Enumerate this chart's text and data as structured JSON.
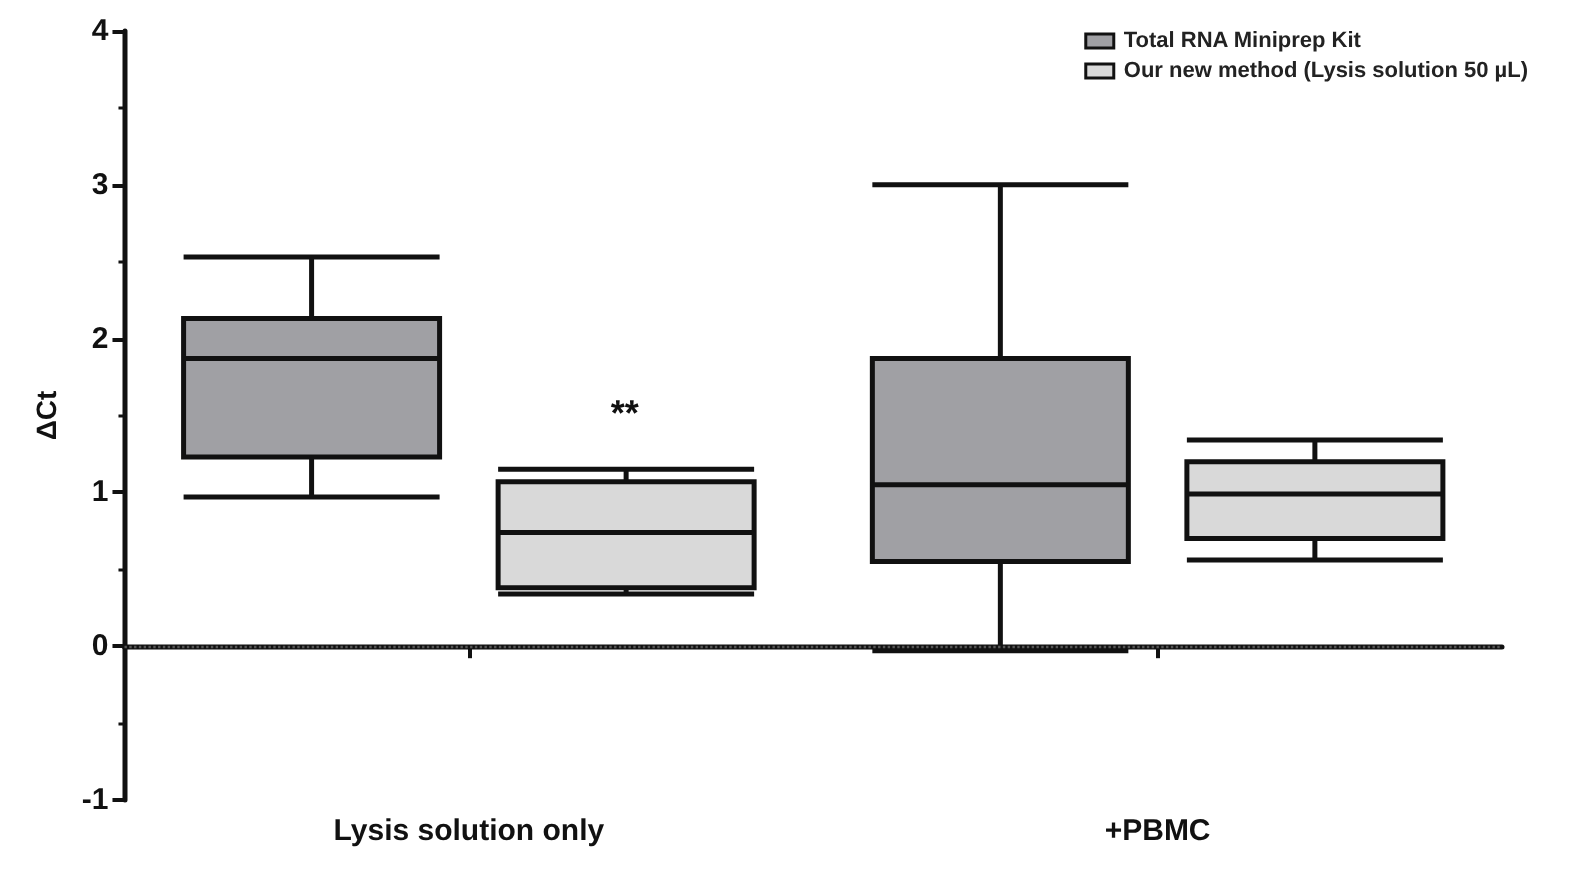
{
  "chart_data": {
    "type": "box",
    "ylabel": "ΔCt",
    "categories": [
      "Lysis solution only",
      "+PBMC"
    ],
    "series": [
      {
        "name": "Total RNA Miniprep Kit",
        "color": "#a0a0a4",
        "boxes": [
          {
            "low": 0.97,
            "q1": 1.23,
            "median": 1.87,
            "q3": 2.13,
            "high": 2.53
          },
          {
            "low": -0.03,
            "q1": 0.55,
            "median": 1.05,
            "q3": 1.87,
            "high": 3.0
          }
        ]
      },
      {
        "name": "Our new method (Lysis solution 50 µL)",
        "color": "#d9d9d9",
        "boxes": [
          {
            "low": 0.34,
            "q1": 0.38,
            "median": 0.74,
            "q3": 1.07,
            "high": 1.15
          },
          {
            "low": 0.56,
            "q1": 0.7,
            "median": 0.99,
            "q3": 1.2,
            "high": 1.34
          }
        ]
      }
    ],
    "ylim": [
      -1,
      4
    ],
    "yticks": [
      -1,
      0,
      1,
      2,
      3,
      4
    ],
    "ref_lines": [
      {
        "axis": "y",
        "value": 0,
        "line_style": "dotted",
        "color": "#555555"
      }
    ],
    "annotations": [
      "**"
    ],
    "legend": "top right",
    "grid": false
  }
}
